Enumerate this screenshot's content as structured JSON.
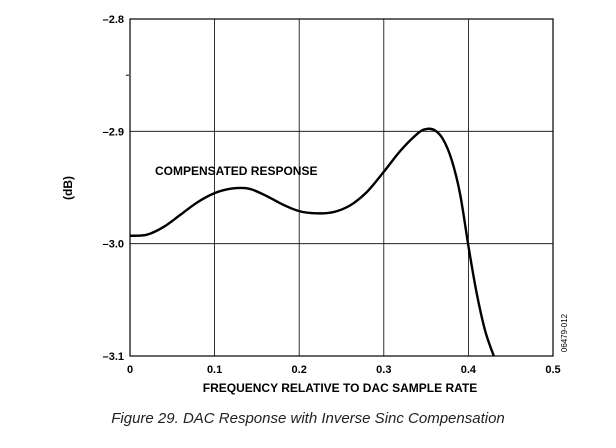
{
  "caption": "Figure 29. DAC Response with Inverse Sinc Compensation",
  "figure_id": "06479-012",
  "chart_data": {
    "type": "line",
    "title": "",
    "xlabel": "FREQUENCY RELATIVE TO DAC SAMPLE RATE",
    "ylabel": "(dB)",
    "xlim": [
      0,
      0.5
    ],
    "ylim": [
      -3.1,
      -2.8
    ],
    "x_ticks": [
      0,
      0.1,
      0.2,
      0.3,
      0.4,
      0.5
    ],
    "x_tick_labels": [
      "0",
      "0.1",
      "0.2",
      "0.3",
      "0.4",
      "0.5"
    ],
    "y_ticks": [
      -2.8,
      -2.9,
      -3.0,
      -3.1
    ],
    "y_tick_labels": [
      "–2.8",
      "–2.9",
      "–3.0",
      "–3.1"
    ],
    "grid": true,
    "annotation": "COMPENSATED RESPONSE",
    "series": [
      {
        "name": "COMPENSATED RESPONSE",
        "color": "#000000",
        "x": [
          0,
          0.02,
          0.04,
          0.06,
          0.08,
          0.1,
          0.12,
          0.14,
          0.16,
          0.18,
          0.2,
          0.22,
          0.24,
          0.26,
          0.28,
          0.3,
          0.32,
          0.34,
          0.35,
          0.36,
          0.37,
          0.38,
          0.39,
          0.4,
          0.41,
          0.42,
          0.43
        ],
        "y": [
          -2.993,
          -2.992,
          -2.985,
          -2.974,
          -2.963,
          -2.955,
          -2.951,
          -2.951,
          -2.957,
          -2.965,
          -2.971,
          -2.973,
          -2.972,
          -2.966,
          -2.954,
          -2.936,
          -2.917,
          -2.902,
          -2.898,
          -2.899,
          -2.907,
          -2.925,
          -2.955,
          -3.002,
          -3.045,
          -3.078,
          -3.1
        ]
      }
    ]
  }
}
